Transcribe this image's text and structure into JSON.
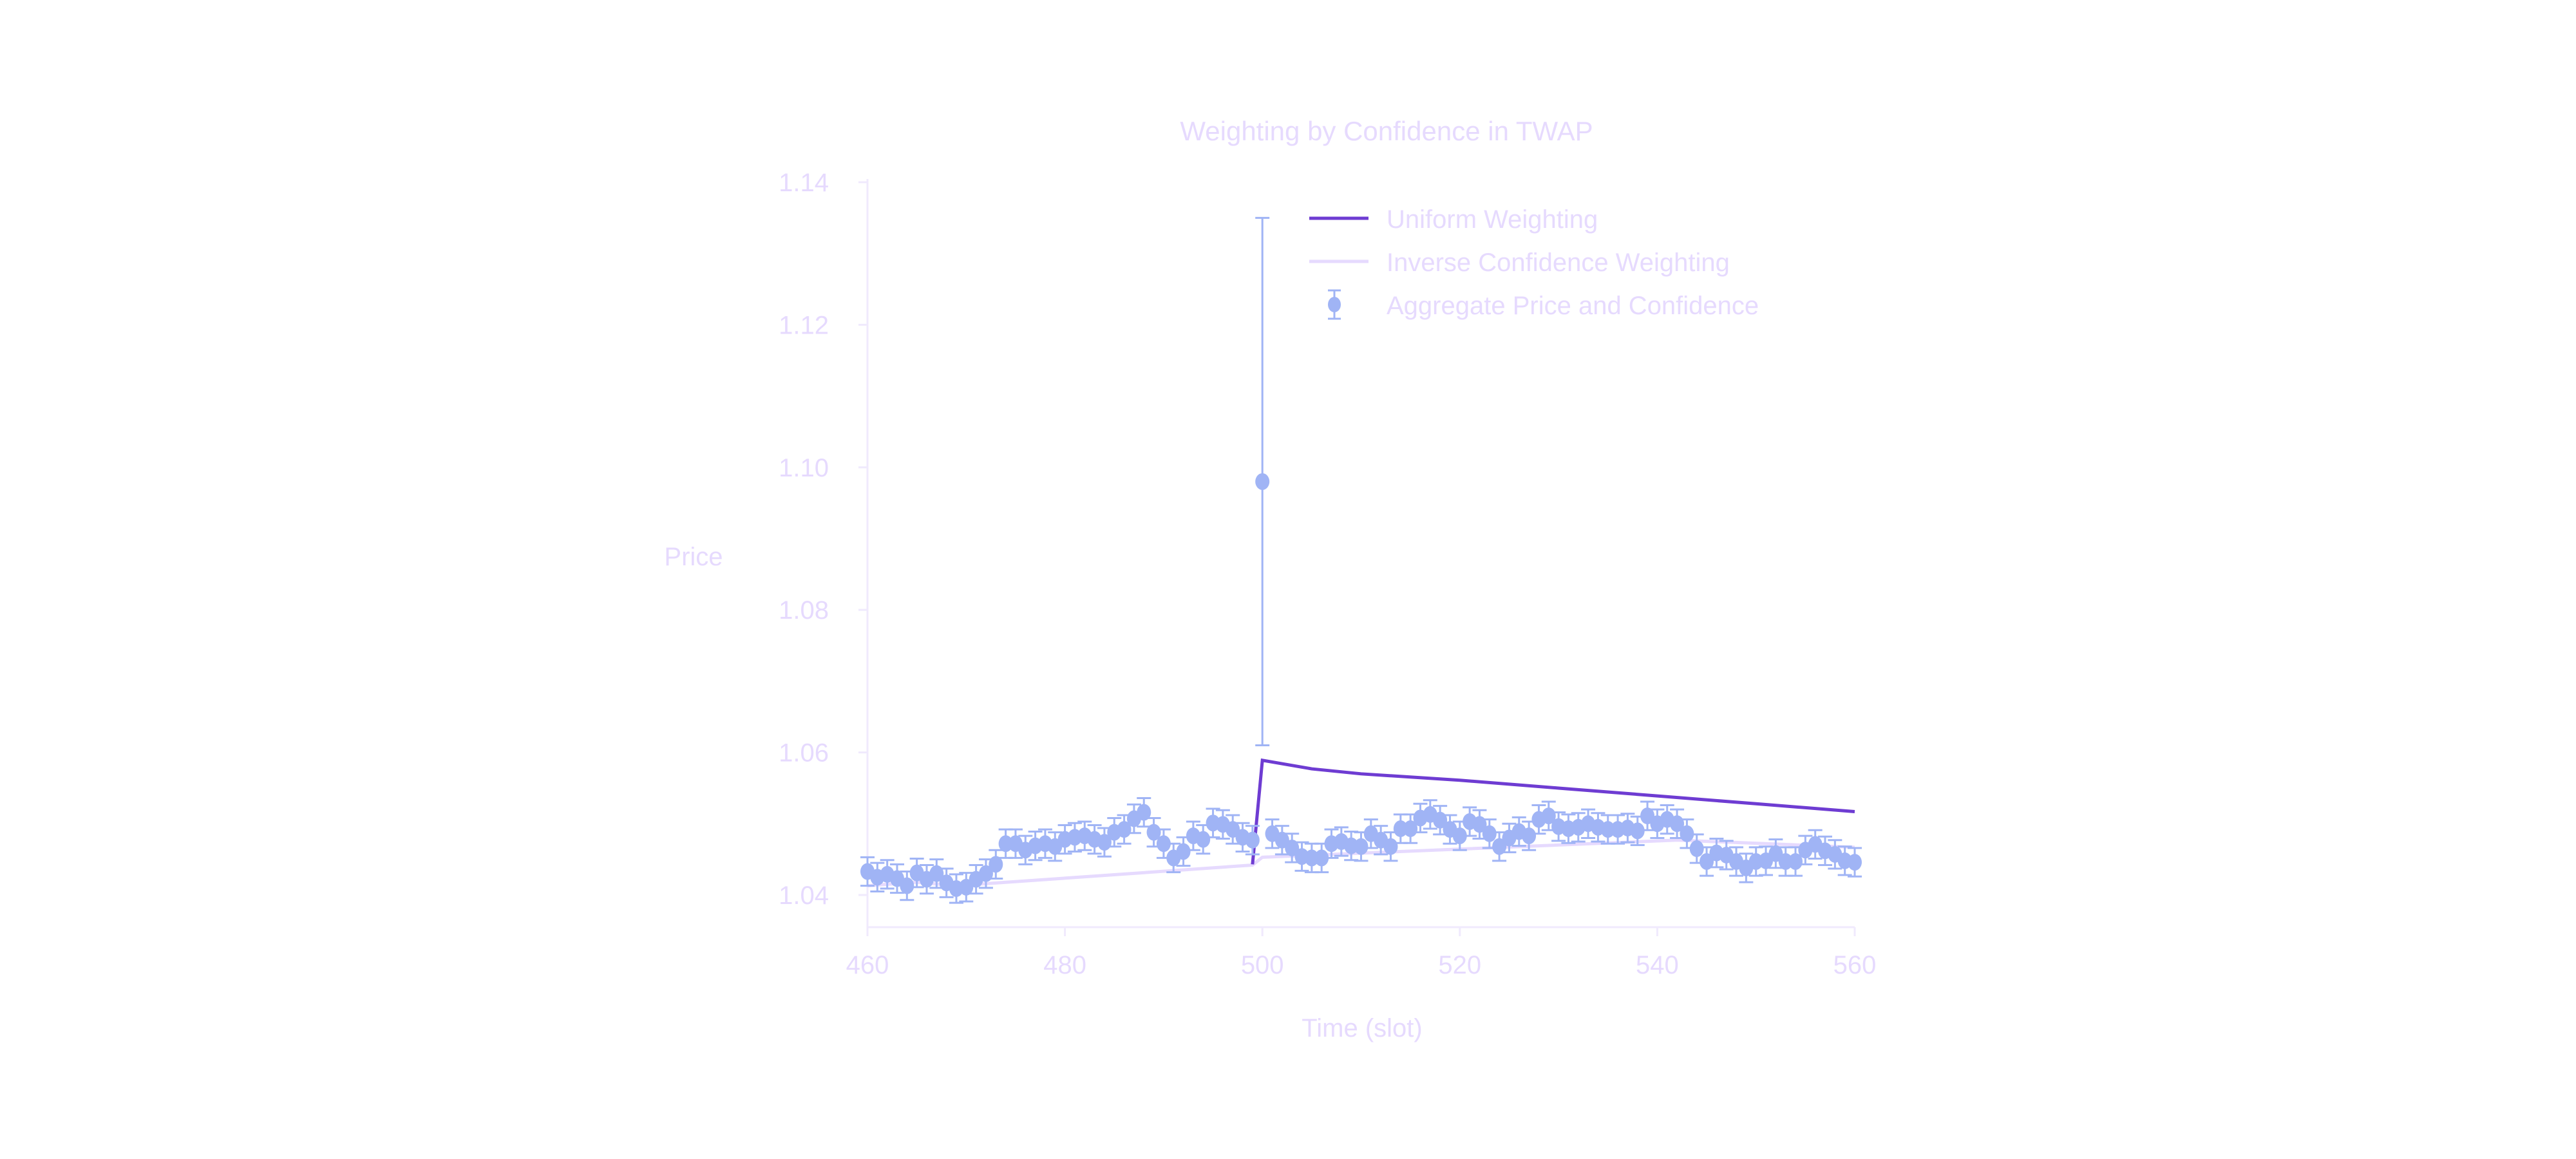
{
  "chart_data": {
    "type": "scatter",
    "title": "Weighting by Confidence in TWAP",
    "xlabel": "Time (slot)",
    "ylabel": "Price",
    "xlim": [
      460,
      560
    ],
    "ylim": [
      1.035,
      1.14
    ],
    "x_ticks": [
      "460",
      "480",
      "500",
      "520",
      "540",
      "560"
    ],
    "y_ticks": [
      "1.04",
      "1.06",
      "1.08",
      "1.10",
      "1.12",
      "1.14"
    ],
    "grid": false,
    "legend_placement": "top-right",
    "colors": {
      "text": "#E6DAFE",
      "uniform": "#6E3CD2",
      "inverse": "#E6DAFE",
      "points": "#A0B4F5",
      "axis": "#F0EAFD"
    },
    "legend": [
      "Uniform Weighting",
      "Inverse Confidence Weighting",
      "Aggregate Price and Confidence"
    ],
    "series": [
      {
        "name": "Uniform Weighting",
        "type": "line",
        "points": [
          [
            460,
            1.0413
          ],
          [
            465,
            1.0418
          ],
          [
            469,
            1.0413
          ],
          [
            499,
            1.0443
          ],
          [
            500,
            1.0589
          ],
          [
            505,
            1.0577
          ],
          [
            510,
            1.057
          ],
          [
            520,
            1.0561
          ],
          [
            530,
            1.055
          ],
          [
            540,
            1.0539
          ],
          [
            550,
            1.0528
          ],
          [
            560,
            1.0517
          ]
        ]
      },
      {
        "name": "Inverse Confidence Weighting",
        "type": "line",
        "points": [
          [
            460,
            1.0413
          ],
          [
            465,
            1.0418
          ],
          [
            469,
            1.0413
          ],
          [
            499,
            1.0442
          ],
          [
            500,
            1.0453
          ],
          [
            542,
            1.0477
          ],
          [
            560,
            1.0467
          ]
        ]
      },
      {
        "name": "Aggregate Price and Confidence",
        "type": "errorbar",
        "x_start": 460,
        "y": [
          1.0433,
          1.0425,
          1.0429,
          1.0423,
          1.0413,
          1.0431,
          1.0422,
          1.043,
          1.0417,
          1.0409,
          1.0411,
          1.0422,
          1.043,
          1.0443,
          1.0472,
          1.0472,
          1.0463,
          1.0469,
          1.0472,
          1.0468,
          1.0478,
          1.0481,
          1.0483,
          1.0478,
          1.0474,
          1.0488,
          1.0492,
          1.0507,
          1.0516,
          1.0488,
          1.0472,
          1.0452,
          1.0461,
          1.0483,
          1.0478,
          1.0501,
          1.0499,
          1.0492,
          1.0481,
          1.0477,
          1.098,
          1.0486,
          1.0477,
          1.0466,
          1.0454,
          1.0452,
          1.0452,
          1.0472,
          1.0475,
          1.0469,
          1.0468,
          1.0486,
          1.0477,
          1.0468,
          1.0493,
          1.0493,
          1.0508,
          1.0513,
          1.0505,
          1.0492,
          1.0483,
          1.0503,
          1.0499,
          1.0486,
          1.0468,
          1.048,
          1.0489,
          1.0483,
          1.0506,
          1.0511,
          1.0496,
          1.0493,
          1.0495,
          1.05,
          1.0495,
          1.0492,
          1.0492,
          1.0494,
          1.049,
          1.0511,
          1.05,
          1.0506,
          1.05,
          1.0486,
          1.0465,
          1.0447,
          1.0459,
          1.0456,
          1.0447,
          1.0438,
          1.0447,
          1.0448,
          1.0458,
          1.0447,
          1.0447,
          1.0463,
          1.0471,
          1.0462,
          1.0457,
          1.0448,
          1.0446
        ],
        "yerr_default": 0.002,
        "yerr_overrides": {
          "500": 0.037
        }
      }
    ]
  }
}
